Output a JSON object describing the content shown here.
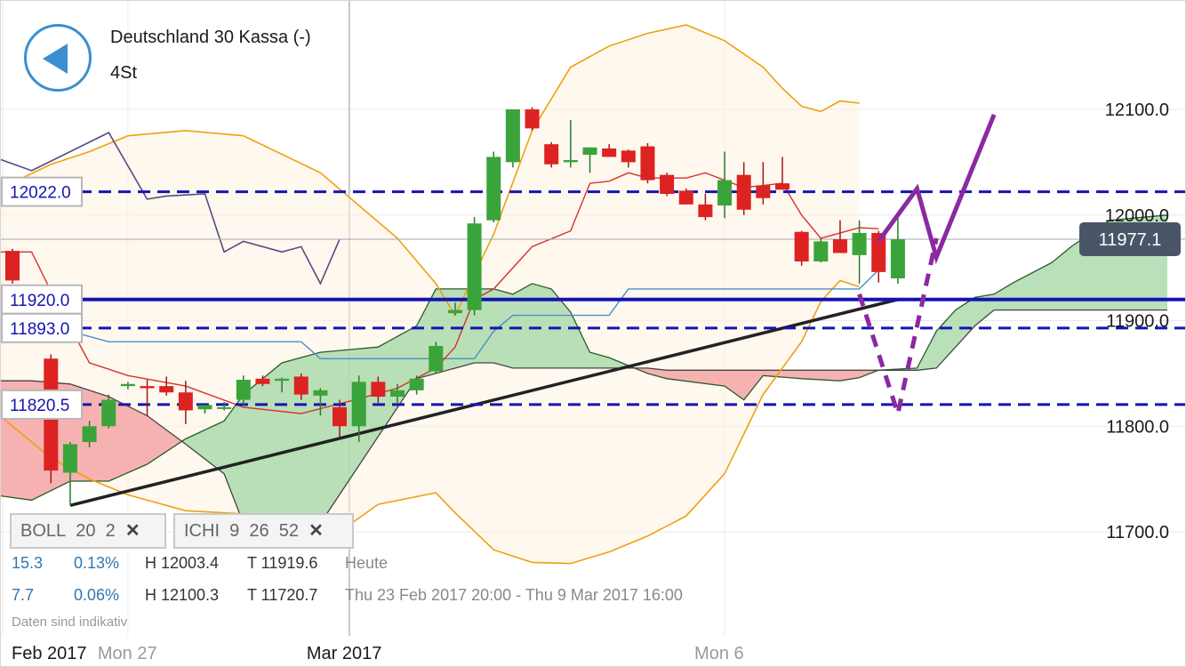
{
  "header": {
    "title": "Deutschland 30 Kassa (-)",
    "interval": "4St"
  },
  "indicators": {
    "boll": {
      "name": "BOLL",
      "p1": "20",
      "p2": "2",
      "close": "✕"
    },
    "ichi": {
      "name": "ICHI",
      "p1": "9",
      "p2": "26",
      "p3": "52",
      "close": "✕"
    }
  },
  "info": {
    "row1": {
      "change": "15.3",
      "pct": "0.13%",
      "high": "H 12003.4",
      "low": "T 11919.6",
      "range": "Heute"
    },
    "row2": {
      "change": "7.7",
      "pct": "0.06%",
      "high": "H 12100.3",
      "low": "T 11720.7",
      "range": "Thu 23 Feb 2017 20:00 - Thu 9 Mar 2017 16:00"
    }
  },
  "disclaimer": "Daten sind indikativ",
  "colors": {
    "up": "#3aa43a",
    "down": "#dd2222",
    "level": "#1414b4",
    "boll": "#f0a010",
    "tenkan": "#d83030",
    "kijun": "#4a90c8",
    "lagging": "#5a4a80",
    "trend": "#222222",
    "projection": "#8a2aa0",
    "cloud_bull": "#a8d8a8",
    "cloud_bear": "#f5aaaa",
    "current": "#4a5568"
  },
  "chart_data": {
    "type": "candlestick",
    "ylim": [
      11660,
      12200
    ],
    "y_ticks": [
      "12100.0",
      "12000.0",
      "11900.0",
      "11800.0",
      "11700.0"
    ],
    "y_tick_values": [
      12100,
      12000,
      11900,
      11800,
      11700
    ],
    "x_labels": [
      {
        "label": "Feb 2017",
        "index": -0.5
      },
      {
        "label": "Mon 27",
        "index": 6
      },
      {
        "label": "Mar 2017",
        "index": 17.5
      },
      {
        "label": "Mon 6",
        "index": 37
      }
    ],
    "candles": [
      [
        11966,
        11968,
        11935,
        11938
      ],
      [
        11930,
        11932,
        11922,
        11925
      ],
      [
        11864,
        11868,
        11746,
        11758
      ],
      [
        11756,
        11785,
        11725,
        11783
      ],
      [
        11785,
        11805,
        11780,
        11800
      ],
      [
        11800,
        11830,
        11798,
        11825
      ],
      [
        11838,
        11842,
        11835,
        11840
      ],
      [
        11838,
        11844,
        11810,
        11836
      ],
      [
        11838,
        11847,
        11829,
        11832
      ],
      [
        11832,
        11843,
        11802,
        11815
      ],
      [
        11816,
        11820,
        11812,
        11820
      ],
      [
        11818,
        11823,
        11815,
        11818
      ],
      [
        11825,
        11848,
        11820,
        11844
      ],
      [
        11845,
        11848,
        11838,
        11840
      ],
      [
        11843,
        11846,
        11832,
        11845
      ],
      [
        11847,
        11850,
        11825,
        11830
      ],
      [
        11829,
        11836,
        11810,
        11834
      ],
      [
        11818,
        11825,
        11790,
        11800
      ],
      [
        11800,
        11848,
        11785,
        11842
      ],
      [
        11842,
        11847,
        11822,
        11828
      ],
      [
        11828,
        11840,
        11822,
        11834
      ],
      [
        11834,
        11848,
        11830,
        11845
      ],
      [
        11852,
        11880,
        11850,
        11876
      ],
      [
        11907,
        11917,
        11905,
        11910
      ],
      [
        11910,
        11998,
        11905,
        11992
      ],
      [
        11995,
        12060,
        11993,
        12055
      ],
      [
        12050,
        12100,
        12045,
        12100
      ],
      [
        12100,
        12102,
        12080,
        12082
      ],
      [
        12067,
        12069,
        12045,
        12048
      ],
      [
        12050,
        12090,
        12045,
        12052
      ],
      [
        12057,
        12060,
        12040,
        12064
      ],
      [
        12063,
        12067,
        12057,
        12055
      ],
      [
        12061,
        12062,
        12045,
        12050
      ],
      [
        12065,
        12068,
        12030,
        12033
      ],
      [
        12038,
        12040,
        12018,
        12020
      ],
      [
        12023,
        12025,
        12010,
        12010
      ],
      [
        12010,
        12020,
        11995,
        11998
      ],
      [
        12009,
        12060,
        11997,
        12033
      ],
      [
        12038,
        12050,
        12000,
        12005
      ],
      [
        12028,
        12050,
        12010,
        12016
      ],
      [
        12030,
        12055,
        12024,
        12024
      ],
      [
        11984,
        11985,
        11952,
        11956
      ],
      [
        11956,
        11978,
        11955,
        11975
      ],
      [
        11977,
        11995,
        11964,
        11964
      ],
      [
        11962,
        11995,
        11935,
        11983
      ],
      [
        11983,
        11985,
        11936,
        11946
      ],
      [
        11940,
        11997,
        11935,
        11977
      ]
    ],
    "levels": [
      {
        "value": 12022.0,
        "label": "12022.0",
        "style": "dashed"
      },
      {
        "value": 11920.0,
        "label": "11920.0",
        "style": "solid"
      },
      {
        "value": 11893.0,
        "label": "11893.0",
        "style": "dashed"
      },
      {
        "value": 11820.5,
        "label": "11820.5",
        "style": "dashed"
      }
    ],
    "current_price": {
      "value": 11977.1,
      "label": "11977.1"
    },
    "boll_upper": [
      [
        -1,
        12022
      ],
      [
        2,
        12048
      ],
      [
        4,
        12060
      ],
      [
        6,
        12075
      ],
      [
        9,
        12080
      ],
      [
        12,
        12075
      ],
      [
        16,
        12040
      ],
      [
        20,
        11978
      ],
      [
        22,
        11935
      ],
      [
        23,
        11905
      ],
      [
        25,
        11982
      ],
      [
        27,
        12080
      ],
      [
        29,
        12140
      ],
      [
        31,
        12160
      ],
      [
        33,
        12172
      ],
      [
        35,
        12180
      ],
      [
        37,
        12165
      ],
      [
        39,
        12140
      ],
      [
        40,
        12120
      ],
      [
        41,
        12103
      ],
      [
        42,
        12098
      ],
      [
        43,
        12108
      ],
      [
        44,
        12106
      ]
    ],
    "boll_lower": [
      [
        -1,
        11815
      ],
      [
        2,
        11770
      ],
      [
        4,
        11750
      ],
      [
        6,
        11735
      ],
      [
        9,
        11720
      ],
      [
        12,
        11717
      ],
      [
        15,
        11705
      ],
      [
        17,
        11700
      ],
      [
        19,
        11726
      ],
      [
        22,
        11737
      ],
      [
        23,
        11718
      ],
      [
        25,
        11683
      ],
      [
        27,
        11671
      ],
      [
        29,
        11670
      ],
      [
        31,
        11681
      ],
      [
        33,
        11696
      ],
      [
        35,
        11715
      ],
      [
        37,
        11755
      ],
      [
        39,
        11830
      ],
      [
        41,
        11880
      ],
      [
        42,
        11918
      ],
      [
        43,
        11938
      ],
      [
        44,
        11932
      ]
    ],
    "tenkan": [
      [
        -1,
        11965
      ],
      [
        1,
        11965
      ],
      [
        2,
        11928
      ],
      [
        4,
        11860
      ],
      [
        6,
        11848
      ],
      [
        9,
        11838
      ],
      [
        12,
        11818
      ],
      [
        15,
        11812
      ],
      [
        18,
        11826
      ],
      [
        20,
        11836
      ],
      [
        22,
        11855
      ],
      [
        23,
        11875
      ],
      [
        24,
        11920
      ],
      [
        25,
        11930
      ],
      [
        27,
        11970
      ],
      [
        29,
        11985
      ],
      [
        30,
        12030
      ],
      [
        31,
        12032
      ],
      [
        32,
        12040
      ],
      [
        33,
        12035
      ],
      [
        35,
        12035
      ],
      [
        36,
        12040
      ],
      [
        38,
        12026
      ],
      [
        40,
        12030
      ],
      [
        41,
        12000
      ],
      [
        42,
        11978
      ],
      [
        44,
        11988
      ],
      [
        45,
        11987
      ]
    ],
    "kijun": [
      [
        -1,
        11890
      ],
      [
        3,
        11890
      ],
      [
        5,
        11880
      ],
      [
        15,
        11880
      ],
      [
        16,
        11864
      ],
      [
        24,
        11864
      ],
      [
        25,
        11890
      ],
      [
        26,
        11905
      ],
      [
        31,
        11905
      ],
      [
        32,
        11930
      ],
      [
        44,
        11930
      ],
      [
        45,
        11948
      ]
    ],
    "chikou": [
      [
        -1,
        12055
      ],
      [
        1,
        12042
      ],
      [
        3,
        12060
      ],
      [
        5,
        12078
      ],
      [
        7,
        12015
      ],
      [
        8,
        12018
      ],
      [
        10,
        12020
      ],
      [
        11,
        11965
      ],
      [
        12,
        11975
      ],
      [
        14,
        11965
      ],
      [
        15,
        11970
      ],
      [
        16,
        11935
      ],
      [
        17,
        11977
      ]
    ],
    "senkou_a": [
      [
        -1,
        11735
      ],
      [
        1,
        11730
      ],
      [
        3,
        11748
      ],
      [
        5,
        11748
      ],
      [
        7,
        11764
      ],
      [
        9,
        11788
      ],
      [
        11,
        11805
      ],
      [
        12,
        11830
      ],
      [
        14,
        11860
      ],
      [
        16,
        11870
      ],
      [
        19,
        11875
      ],
      [
        21,
        11895
      ],
      [
        22,
        11930
      ],
      [
        25,
        11930
      ],
      [
        26,
        11925
      ],
      [
        27,
        11935
      ],
      [
        28,
        11930
      ],
      [
        29,
        11908
      ],
      [
        30,
        11870
      ],
      [
        31,
        11865
      ],
      [
        33,
        11850
      ],
      [
        34,
        11845
      ],
      [
        37,
        11838
      ],
      [
        38,
        11825
      ],
      [
        39,
        11848
      ],
      [
        41,
        11845
      ],
      [
        43,
        11843
      ],
      [
        44,
        11846
      ],
      [
        45,
        11853
      ],
      [
        47,
        11855
      ],
      [
        48,
        11890
      ],
      [
        49,
        11910
      ],
      [
        50,
        11922
      ],
      [
        51,
        11925
      ],
      [
        52,
        11936
      ],
      [
        54,
        11955
      ],
      [
        55,
        11970
      ],
      [
        57,
        11995
      ],
      [
        60,
        12000
      ]
    ],
    "senkou_b": [
      [
        -1,
        11843
      ],
      [
        1,
        11843
      ],
      [
        3,
        11840
      ],
      [
        5,
        11828
      ],
      [
        7,
        11810
      ],
      [
        9,
        11783
      ],
      [
        11,
        11755
      ],
      [
        12,
        11708
      ],
      [
        14,
        11708
      ],
      [
        16,
        11708
      ],
      [
        21,
        11845
      ],
      [
        22,
        11850
      ],
      [
        24,
        11860
      ],
      [
        25,
        11860
      ],
      [
        26,
        11855
      ],
      [
        33,
        11855
      ],
      [
        34,
        11853
      ],
      [
        47,
        11853
      ],
      [
        48,
        11855
      ],
      [
        50,
        11895
      ],
      [
        51,
        11910
      ],
      [
        60,
        11910
      ]
    ],
    "trendline": [
      [
        3,
        11725
      ],
      [
        46,
        11920
      ]
    ],
    "projection_solid": [
      [
        45,
        11975
      ],
      [
        47,
        12025
      ],
      [
        48,
        11960
      ],
      [
        51,
        12095
      ]
    ],
    "projection_dashed": [
      [
        44,
        11925
      ],
      [
        46,
        11812
      ],
      [
        48,
        11978
      ]
    ]
  }
}
